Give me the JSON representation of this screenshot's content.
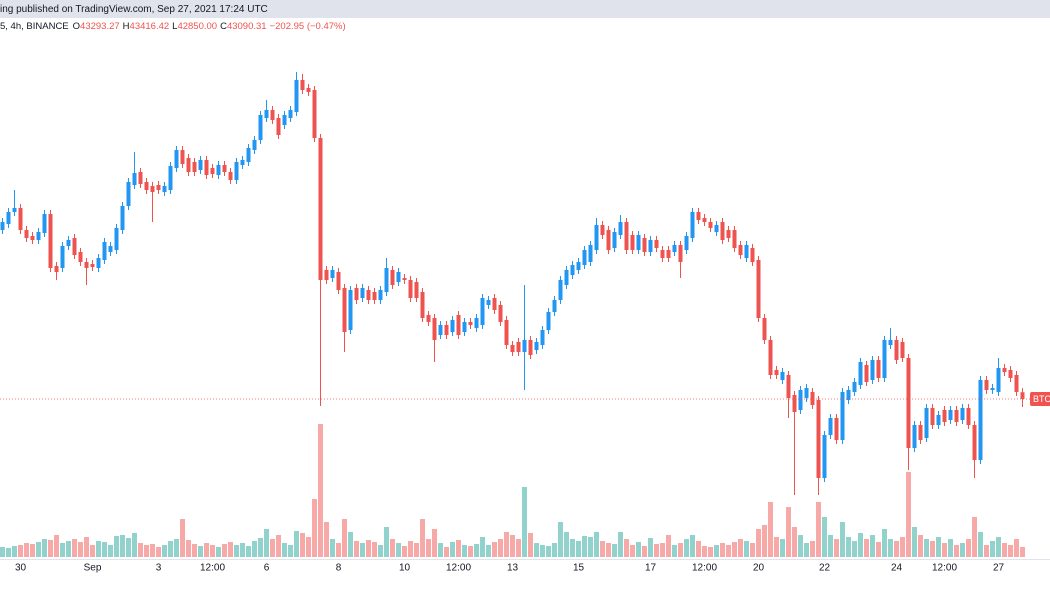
{
  "header": {
    "title": "ing published on TradingView.com, Sep 27, 2021 17:24 UTC"
  },
  "chart_data": {
    "type": "candlestick",
    "symbol": "5, 4h, BINANCE",
    "legend": [
      {
        "label": "O",
        "value": "43293.27"
      },
      {
        "label": "H",
        "value": "43416.42"
      },
      {
        "label": "L",
        "value": "42850.00"
      },
      {
        "label": "C",
        "value": "43090.31"
      }
    ],
    "change": "−202.95 (−0.47%)",
    "price_tag": "BTCU",
    "up_color": "#2196f3",
    "down_color": "#ef5350",
    "volume_up_color": "#92d2cc",
    "volume_down_color": "#f7a9a7",
    "legend_color": "#ef5350",
    "ylim": [
      38350,
      54100
    ],
    "volume_ylim": [
      0,
      236250
    ],
    "categories": [
      null,
      null,
      null,
      "30",
      null,
      null,
      null,
      null,
      null,
      null,
      null,
      null,
      null,
      null,
      null,
      "Sep",
      null,
      null,
      null,
      null,
      null,
      null,
      null,
      null,
      null,
      null,
      "3",
      null,
      null,
      null,
      null,
      null,
      null,
      null,
      null,
      "12:00",
      null,
      null,
      null,
      null,
      null,
      null,
      null,
      null,
      "6",
      null,
      null,
      null,
      null,
      null,
      null,
      null,
      null,
      null,
      null,
      null,
      "8",
      null,
      null,
      null,
      null,
      null,
      null,
      null,
      null,
      null,
      null,
      "10",
      null,
      null,
      null,
      null,
      null,
      null,
      null,
      null,
      "12:00",
      null,
      null,
      null,
      null,
      null,
      null,
      null,
      null,
      "13",
      null,
      null,
      null,
      null,
      null,
      null,
      null,
      null,
      null,
      null,
      "15",
      null,
      null,
      null,
      null,
      null,
      null,
      null,
      null,
      null,
      null,
      null,
      "17",
      null,
      null,
      null,
      null,
      null,
      null,
      null,
      null,
      "12:00",
      null,
      null,
      null,
      null,
      null,
      null,
      null,
      null,
      "20",
      null,
      null,
      null,
      null,
      null,
      null,
      null,
      null,
      null,
      null,
      "22",
      null,
      null,
      null,
      null,
      null,
      null,
      null,
      null,
      null,
      null,
      null,
      "24",
      null,
      null,
      null,
      null,
      null,
      null,
      null,
      "12:00",
      null,
      null,
      null,
      null,
      null,
      null,
      null,
      null,
      "27",
      null,
      null,
      null,
      null
    ],
    "candles": [
      [
        48160,
        48520,
        48040,
        48400
      ],
      [
        48340,
        48820,
        48220,
        48700
      ],
      [
        48700,
        49360,
        48580,
        48820
      ],
      [
        48820,
        48940,
        48040,
        48160
      ],
      [
        48160,
        48280,
        47800,
        47920
      ],
      [
        47980,
        48100,
        47740,
        47860
      ],
      [
        47860,
        48220,
        47740,
        48100
      ],
      [
        48070,
        48760,
        47950,
        48640
      ],
      [
        48640,
        48760,
        46900,
        47020
      ],
      [
        47080,
        47200,
        46660,
        46900
      ],
      [
        47020,
        47800,
        46900,
        47680
      ],
      [
        47680,
        47980,
        47560,
        47860
      ],
      [
        47920,
        48040,
        47290,
        47410
      ],
      [
        47500,
        47620,
        47080,
        47200
      ],
      [
        47200,
        47320,
        46510,
        47020
      ],
      [
        47140,
        47260,
        46930,
        47050
      ],
      [
        47020,
        47440,
        46900,
        47320
      ],
      [
        47260,
        47920,
        47140,
        47800
      ],
      [
        47500,
        47800,
        47380,
        47680
      ],
      [
        47560,
        48340,
        47440,
        48220
      ],
      [
        48160,
        49000,
        48040,
        48880
      ],
      [
        48880,
        49720,
        48760,
        49600
      ],
      [
        49510,
        50500,
        49390,
        49870
      ],
      [
        49900,
        50020,
        49420,
        49540
      ],
      [
        49600,
        49720,
        49240,
        49360
      ],
      [
        49480,
        49600,
        48400,
        49300
      ],
      [
        49510,
        49630,
        49240,
        49360
      ],
      [
        49300,
        49600,
        49180,
        49480
      ],
      [
        49360,
        50200,
        49240,
        50080
      ],
      [
        50020,
        50680,
        49900,
        50560
      ],
      [
        50560,
        50680,
        50020,
        50140
      ],
      [
        50320,
        50440,
        49780,
        49900
      ],
      [
        50200,
        50320,
        49780,
        49900
      ],
      [
        49960,
        50380,
        49840,
        50260
      ],
      [
        50260,
        50380,
        49690,
        49810
      ],
      [
        50020,
        50140,
        49720,
        49840
      ],
      [
        49810,
        50230,
        49690,
        50110
      ],
      [
        50110,
        50230,
        49780,
        49900
      ],
      [
        49900,
        50020,
        49540,
        49660
      ],
      [
        49660,
        50320,
        49540,
        50200
      ],
      [
        50110,
        50380,
        49990,
        50260
      ],
      [
        50200,
        50740,
        50080,
        50620
      ],
      [
        50560,
        50980,
        50440,
        50860
      ],
      [
        50860,
        51730,
        50740,
        51610
      ],
      [
        51520,
        52060,
        51400,
        51760
      ],
      [
        51760,
        51880,
        51340,
        51460
      ],
      [
        51520,
        51640,
        50890,
        51010
      ],
      [
        51310,
        51730,
        51190,
        51610
      ],
      [
        51520,
        51880,
        51400,
        51760
      ],
      [
        51700,
        52900,
        51580,
        52660
      ],
      [
        52660,
        52840,
        52240,
        52360
      ],
      [
        52420,
        52540,
        52180,
        52300
      ],
      [
        52360,
        52480,
        50800,
        50920
      ],
      [
        50920,
        51040,
        42880,
        46660
      ],
      [
        46960,
        47080,
        46540,
        46660
      ],
      [
        46720,
        47080,
        46600,
        46960
      ],
      [
        46900,
        47020,
        46240,
        46360
      ],
      [
        46420,
        46540,
        44500,
        45100
      ],
      [
        45160,
        46480,
        45040,
        46360
      ],
      [
        46420,
        46540,
        45940,
        46060
      ],
      [
        46120,
        46540,
        46000,
        46420
      ],
      [
        46360,
        46480,
        45940,
        46060
      ],
      [
        46300,
        46420,
        45940,
        46060
      ],
      [
        46060,
        46480,
        45940,
        46360
      ],
      [
        46300,
        47320,
        46180,
        47020
      ],
      [
        46960,
        47080,
        46390,
        46510
      ],
      [
        46600,
        47020,
        46480,
        46900
      ],
      [
        46720,
        46840,
        46540,
        46660
      ],
      [
        46660,
        46780,
        46000,
        46120
      ],
      [
        46600,
        46720,
        46000,
        46120
      ],
      [
        46300,
        46420,
        45400,
        45520
      ],
      [
        45610,
        45730,
        45280,
        45400
      ],
      [
        45520,
        45640,
        44200,
        44860
      ],
      [
        45010,
        45430,
        44890,
        45310
      ],
      [
        45310,
        45430,
        44890,
        45010
      ],
      [
        45100,
        45580,
        44980,
        45460
      ],
      [
        45610,
        45730,
        44890,
        45010
      ],
      [
        45100,
        45520,
        44980,
        45400
      ],
      [
        45400,
        45520,
        45190,
        45310
      ],
      [
        45220,
        45640,
        45100,
        45520
      ],
      [
        45310,
        46240,
        45190,
        46120
      ],
      [
        45910,
        46180,
        45790,
        46060
      ],
      [
        46120,
        46240,
        45640,
        45760
      ],
      [
        45910,
        46030,
        45280,
        45400
      ],
      [
        45460,
        45580,
        44590,
        44710
      ],
      [
        44710,
        44830,
        44380,
        44500
      ],
      [
        44800,
        44920,
        44380,
        44500
      ],
      [
        44500,
        46510,
        43360,
        44860
      ],
      [
        44860,
        44980,
        44290,
        44410
      ],
      [
        44560,
        44920,
        44440,
        44800
      ],
      [
        44710,
        45280,
        44590,
        45160
      ],
      [
        45160,
        45820,
        45040,
        45700
      ],
      [
        45700,
        46180,
        45580,
        46060
      ],
      [
        46060,
        46780,
        45940,
        46660
      ],
      [
        46510,
        47080,
        46390,
        46960
      ],
      [
        46810,
        47230,
        46690,
        47110
      ],
      [
        46960,
        47320,
        46840,
        47200
      ],
      [
        47110,
        47680,
        46990,
        47560
      ],
      [
        47200,
        47830,
        47080,
        47710
      ],
      [
        47560,
        48520,
        47440,
        48310
      ],
      [
        48310,
        48430,
        47890,
        48010
      ],
      [
        48160,
        48280,
        47440,
        47560
      ],
      [
        47620,
        48220,
        47500,
        48100
      ],
      [
        48010,
        48610,
        47890,
        48400
      ],
      [
        48400,
        48520,
        47440,
        47560
      ],
      [
        48010,
        48130,
        47440,
        47560
      ],
      [
        47560,
        48130,
        47440,
        48010
      ],
      [
        47920,
        48040,
        47380,
        47500
      ],
      [
        47500,
        47980,
        47380,
        47860
      ],
      [
        47860,
        47980,
        47500,
        47620
      ],
      [
        47560,
        47680,
        47200,
        47320
      ],
      [
        47560,
        47680,
        47200,
        47320
      ],
      [
        47500,
        47830,
        47380,
        47710
      ],
      [
        47710,
        47830,
        46720,
        47200
      ],
      [
        47560,
        48100,
        47440,
        47980
      ],
      [
        47920,
        48820,
        47800,
        48700
      ],
      [
        48700,
        48820,
        48340,
        48460
      ],
      [
        48520,
        48640,
        48280,
        48400
      ],
      [
        48400,
        48520,
        48100,
        48220
      ],
      [
        48100,
        48430,
        47980,
        48310
      ],
      [
        48400,
        48520,
        47740,
        47860
      ],
      [
        48160,
        48280,
        47800,
        47920
      ],
      [
        48160,
        48280,
        47500,
        47620
      ],
      [
        47710,
        47830,
        47290,
        47410
      ],
      [
        47320,
        47830,
        47200,
        47710
      ],
      [
        47620,
        47740,
        47080,
        47200
      ],
      [
        47260,
        47380,
        45400,
        45520
      ],
      [
        45520,
        45640,
        44740,
        44860
      ],
      [
        44860,
        44980,
        43690,
        43810
      ],
      [
        43960,
        44080,
        43690,
        43810
      ],
      [
        43660,
        44020,
        43540,
        43900
      ],
      [
        43810,
        43930,
        42520,
        43120
      ],
      [
        43210,
        43330,
        40210,
        42700
      ],
      [
        42760,
        43480,
        42640,
        43360
      ],
      [
        43120,
        43540,
        43000,
        43420
      ],
      [
        43300,
        43420,
        42790,
        42910
      ],
      [
        43060,
        43180,
        40210,
        40720
      ],
      [
        40720,
        42130,
        40600,
        42010
      ],
      [
        42010,
        42640,
        41890,
        42520
      ],
      [
        42520,
        42640,
        41740,
        41860
      ],
      [
        41860,
        43420,
        41740,
        43300
      ],
      [
        43060,
        43480,
        42940,
        43360
      ],
      [
        43300,
        43720,
        43180,
        43600
      ],
      [
        43510,
        44320,
        43390,
        44200
      ],
      [
        44110,
        44230,
        43480,
        43600
      ],
      [
        43660,
        44380,
        43540,
        44260
      ],
      [
        44260,
        44380,
        43600,
        43720
      ],
      [
        43720,
        44980,
        43600,
        44860
      ],
      [
        44710,
        45220,
        44590,
        44860
      ],
      [
        44860,
        44980,
        44140,
        44260
      ],
      [
        44800,
        44920,
        44200,
        44320
      ],
      [
        44320,
        44440,
        40960,
        41620
      ],
      [
        41620,
        42430,
        41500,
        42310
      ],
      [
        42310,
        42430,
        41740,
        41860
      ],
      [
        41920,
        42940,
        41800,
        42820
      ],
      [
        42820,
        42940,
        42190,
        42310
      ],
      [
        42310,
        42730,
        42190,
        42610
      ],
      [
        42760,
        42880,
        42280,
        42400
      ],
      [
        42460,
        42880,
        42340,
        42760
      ],
      [
        42760,
        42880,
        42280,
        42400
      ],
      [
        42460,
        42940,
        42340,
        42820
      ],
      [
        42820,
        42940,
        42190,
        42310
      ],
      [
        42310,
        42430,
        40720,
        41260
      ],
      [
        41260,
        43780,
        41140,
        43660
      ],
      [
        43660,
        43780,
        43240,
        43360
      ],
      [
        43360,
        43540,
        43240,
        43420
      ],
      [
        43300,
        44320,
        43180,
        44020
      ],
      [
        44020,
        44140,
        43780,
        43900
      ],
      [
        43960,
        44080,
        43600,
        43720
      ],
      [
        43810,
        43930,
        43180,
        43300
      ],
      [
        43293.27,
        43416.42,
        42850,
        43090.31
      ]
    ],
    "volume": [
      4500,
      4050,
      4950,
      5400,
      6300,
      5850,
      6750,
      8100,
      7650,
      9900,
      6300,
      7200,
      8100,
      6750,
      9000,
      5400,
      7200,
      6750,
      5400,
      9450,
      9900,
      8550,
      10800,
      6300,
      5400,
      5850,
      4500,
      5400,
      7200,
      8100,
      17100,
      7650,
      5850,
      4950,
      6300,
      5400,
      4500,
      5850,
      6750,
      5400,
      6300,
      4950,
      7200,
      8550,
      12600,
      8100,
      9900,
      6300,
      5400,
      11700,
      10800,
      9000,
      26100,
      59850,
      15750,
      8100,
      6300,
      17100,
      11250,
      7200,
      6300,
      7650,
      6750,
      5400,
      13500,
      8100,
      6300,
      4950,
      7200,
      6300,
      17100,
      8100,
      12600,
      6300,
      4500,
      6750,
      7650,
      5400,
      4950,
      5850,
      9000,
      5400,
      6750,
      8100,
      11250,
      9900,
      8100,
      31500,
      10800,
      6300,
      5400,
      4950,
      6300,
      15750,
      11250,
      8100,
      7200,
      9450,
      9000,
      11250,
      7200,
      6300,
      5850,
      11250,
      8100,
      5400,
      6750,
      4950,
      8550,
      5850,
      6300,
      9900,
      5400,
      6300,
      8100,
      9900,
      7200,
      4950,
      4500,
      5400,
      6300,
      5400,
      6750,
      8100,
      7200,
      6300,
      12600,
      14400,
      24750,
      9000,
      8100,
      22500,
      13500,
      9900,
      6300,
      7200,
      24750,
      18000,
      9900,
      8100,
      15750,
      9000,
      7200,
      10800,
      8100,
      9900,
      6750,
      12600,
      8100,
      7200,
      9000,
      38250,
      13500,
      9900,
      8100,
      7200,
      9000,
      6300,
      8100,
      5400,
      6300,
      8100,
      18000,
      11250,
      5400,
      7200,
      9000,
      6300,
      5400,
      8100,
      4500
    ]
  }
}
